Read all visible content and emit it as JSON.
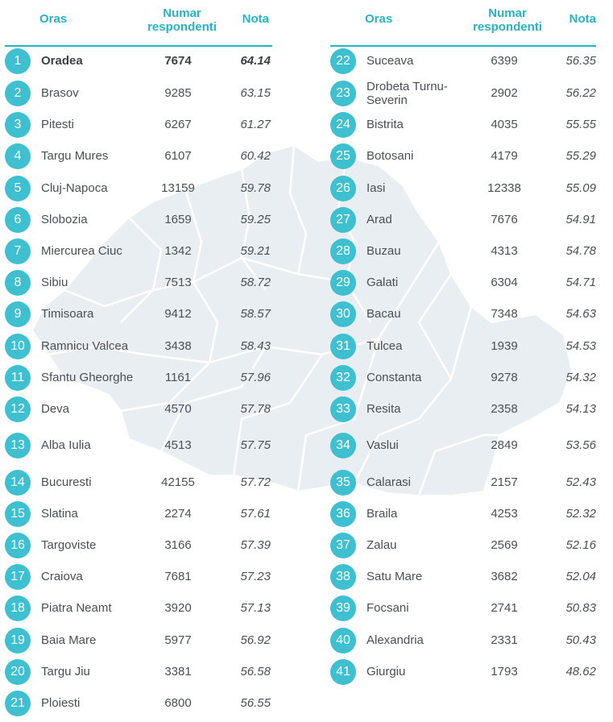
{
  "headers": {
    "city": "Oras",
    "respondents": "Numar respondenti",
    "score": "Nota"
  },
  "colors": {
    "accent": "#27b3c6",
    "badge": "#3fc0d0",
    "map_fill": "#e9eef3"
  },
  "left_rows": [
    {
      "rank": "1",
      "city": "Oradea",
      "respondents": "7674",
      "score": "64.14"
    },
    {
      "rank": "2",
      "city": "Brasov",
      "respondents": "9285",
      "score": "63.15"
    },
    {
      "rank": "3",
      "city": "Pitesti",
      "respondents": "6267",
      "score": "61.27"
    },
    {
      "rank": "4",
      "city": "Targu Mures",
      "respondents": "6107",
      "score": "60.42"
    },
    {
      "rank": "5",
      "city": "Cluj-Napoca",
      "respondents": "13159",
      "score": "59.78"
    },
    {
      "rank": "6",
      "city": "Slobozia",
      "respondents": "1659",
      "score": "59.25"
    },
    {
      "rank": "7",
      "city": "Miercurea Ciuc",
      "respondents": "1342",
      "score": "59.21"
    },
    {
      "rank": "8",
      "city": "Sibiu",
      "respondents": "7513",
      "score": "58.72"
    },
    {
      "rank": "9",
      "city": "Timisoara",
      "respondents": "9412",
      "score": "58.57"
    },
    {
      "rank": "10",
      "city": "Ramnicu Valcea",
      "respondents": "3438",
      "score": "58.43"
    },
    {
      "rank": "11",
      "city": "Sfantu Gheorghe",
      "respondents": "1161",
      "score": "57.96"
    },
    {
      "rank": "12",
      "city": "Deva",
      "respondents": "4570",
      "score": "57.78"
    },
    {
      "rank": "13",
      "city": "Alba Iulia",
      "respondents": "4513",
      "score": "57.75"
    },
    {
      "rank": "14",
      "city": "Bucuresti",
      "respondents": "42155",
      "score": "57.72"
    },
    {
      "rank": "15",
      "city": "Slatina",
      "respondents": "2274",
      "score": "57.61"
    },
    {
      "rank": "16",
      "city": "Targoviste",
      "respondents": "3166",
      "score": "57.39"
    },
    {
      "rank": "17",
      "city": "Craiova",
      "respondents": "7681",
      "score": "57.23"
    },
    {
      "rank": "18",
      "city": "Piatra Neamt",
      "respondents": "3920",
      "score": "57.13"
    },
    {
      "rank": "19",
      "city": "Baia Mare",
      "respondents": "5977",
      "score": "56.92"
    },
    {
      "rank": "20",
      "city": "Targu Jiu",
      "respondents": "3381",
      "score": "56.58"
    },
    {
      "rank": "21",
      "city": "Ploiesti",
      "respondents": "6800",
      "score": "56.55"
    }
  ],
  "right_rows": [
    {
      "rank": "22",
      "city": "Suceava",
      "respondents": "6399",
      "score": "56.35"
    },
    {
      "rank": "23",
      "city": "Drobeta Turnu-Severin",
      "respondents": "2902",
      "score": "56.22"
    },
    {
      "rank": "24",
      "city": "Bistrita",
      "respondents": "4035",
      "score": "55.55"
    },
    {
      "rank": "25",
      "city": "Botosani",
      "respondents": "4179",
      "score": "55.29"
    },
    {
      "rank": "26",
      "city": "Iasi",
      "respondents": "12338",
      "score": "55.09"
    },
    {
      "rank": "27",
      "city": "Arad",
      "respondents": "7676",
      "score": "54.91"
    },
    {
      "rank": "28",
      "city": "Buzau",
      "respondents": "4313",
      "score": "54.78"
    },
    {
      "rank": "29",
      "city": "Galati",
      "respondents": "6304",
      "score": "54.71"
    },
    {
      "rank": "30",
      "city": "Bacau",
      "respondents": "7348",
      "score": "54.63"
    },
    {
      "rank": "31",
      "city": "Tulcea",
      "respondents": "1939",
      "score": "54.53"
    },
    {
      "rank": "32",
      "city": "Constanta",
      "respondents": "9278",
      "score": "54.32"
    },
    {
      "rank": "33",
      "city": "Resita",
      "respondents": "2358",
      "score": "54.13"
    },
    {
      "rank": "34",
      "city": "Vaslui",
      "respondents": "2849",
      "score": "53.56"
    },
    {
      "rank": "35",
      "city": "Calarasi",
      "respondents": "2157",
      "score": "52.43"
    },
    {
      "rank": "36",
      "city": "Braila",
      "respondents": "4253",
      "score": "52.32"
    },
    {
      "rank": "37",
      "city": "Zalau",
      "respondents": "2569",
      "score": "52.16"
    },
    {
      "rank": "38",
      "city": "Satu Mare",
      "respondents": "3682",
      "score": "52.04"
    },
    {
      "rank": "39",
      "city": "Focsani",
      "respondents": "2741",
      "score": "50.83"
    },
    {
      "rank": "40",
      "city": "Alexandria",
      "respondents": "2331",
      "score": "50.43"
    },
    {
      "rank": "41",
      "city": "Giurgiu",
      "respondents": "1793",
      "score": "48.62"
    }
  ]
}
